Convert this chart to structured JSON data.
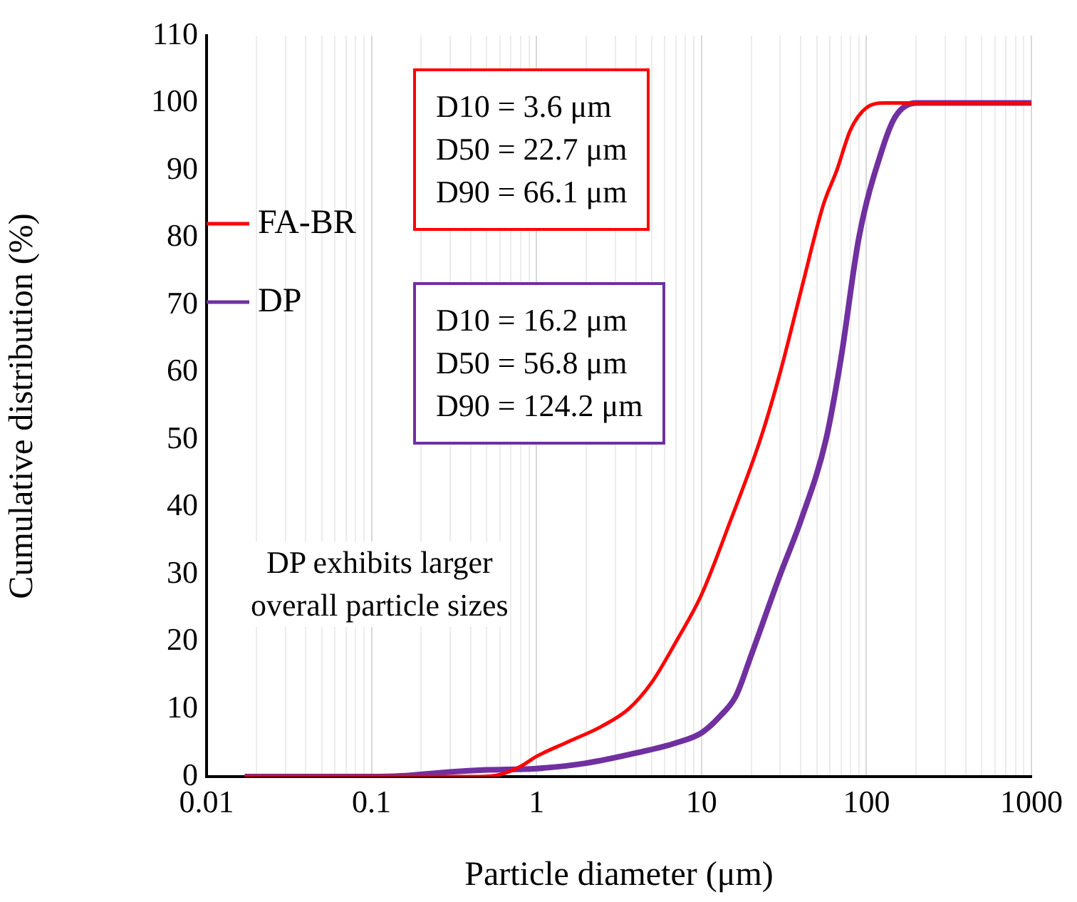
{
  "chart_data": {
    "type": "line",
    "xlabel": "Particle diameter (μm)",
    "ylabel": "Cumulative distribution (%)",
    "log": "x",
    "grid": "x",
    "legend": "left",
    "marker": "none",
    "line_style": "solid",
    "xlim": [
      0.01,
      1000
    ],
    "ylim": [
      0,
      110
    ],
    "xticks": [
      0.01,
      {
        "value": 0.02,
        "label": null
      },
      {
        "value": 0.03,
        "label": null
      },
      {
        "value": 0.04,
        "label": null
      },
      {
        "value": 0.05,
        "label": null
      },
      {
        "value": 0.06,
        "label": null
      },
      {
        "value": 0.07,
        "label": null
      },
      {
        "value": 0.08,
        "label": null
      },
      {
        "value": 0.09,
        "label": null
      },
      0.1,
      {
        "value": 0.2,
        "label": null
      },
      {
        "value": 0.3,
        "label": null
      },
      {
        "value": 0.4,
        "label": null
      },
      {
        "value": 0.5,
        "label": null
      },
      {
        "value": 0.6,
        "label": null
      },
      {
        "value": 0.7,
        "label": null
      },
      {
        "value": 0.8,
        "label": null
      },
      {
        "value": 0.9,
        "label": null
      },
      1,
      {
        "value": 2,
        "label": null
      },
      {
        "value": 3,
        "label": null
      },
      {
        "value": 4,
        "label": null
      },
      {
        "value": 5,
        "label": null
      },
      {
        "value": 6,
        "label": null
      },
      {
        "value": 7,
        "label": null
      },
      {
        "value": 8,
        "label": null
      },
      {
        "value": 9,
        "label": null
      },
      10,
      {
        "value": 20,
        "label": null
      },
      {
        "value": 30,
        "label": null
      },
      {
        "value": 40,
        "label": null
      },
      {
        "value": 50,
        "label": null
      },
      {
        "value": 60,
        "label": null
      },
      {
        "value": 70,
        "label": null
      },
      {
        "value": 80,
        "label": null
      },
      {
        "value": 90,
        "label": null
      },
      100,
      {
        "value": 200,
        "label": null
      },
      {
        "value": 300,
        "label": null
      },
      {
        "value": 400,
        "label": null
      },
      {
        "value": 500,
        "label": null
      },
      {
        "value": 600,
        "label": null
      },
      {
        "value": 700,
        "label": null
      },
      {
        "value": 800,
        "label": null
      },
      {
        "value": 900,
        "label": null
      },
      1000
    ],
    "yticks": [
      0,
      10,
      20,
      30,
      40,
      50,
      60,
      70,
      80,
      90,
      100,
      110
    ],
    "series": [
      {
        "name": "FA-BR",
        "color": "#ff0000",
        "x": [
          0.017,
          0.1,
          0.3,
          0.45,
          0.6,
          0.8,
          1,
          1.5,
          2.5,
          3.6,
          5,
          7,
          10,
          15,
          22.7,
          30,
          40,
          55,
          66.1,
          80,
          100,
          130,
          200,
          1000
        ],
        "values": [
          0,
          0,
          0,
          0,
          0.3,
          1.5,
          3,
          5,
          7.5,
          10,
          14,
          20,
          27,
          38,
          50,
          60,
          72,
          85,
          90,
          96,
          99.3,
          100,
          100,
          100
        ]
      },
      {
        "name": "DP",
        "color": "#7030a0",
        "x": [
          0.017,
          0.1,
          0.15,
          0.3,
          0.5,
          1,
          2,
          4,
          7,
          10,
          13,
          16.2,
          20,
          30,
          40,
          56.8,
          70,
          90,
          124.2,
          150,
          200,
          1000
        ],
        "values": [
          0,
          0,
          0.1,
          0.7,
          1,
          1.2,
          2,
          3.5,
          5,
          6.5,
          9,
          12,
          18,
          30,
          38,
          50,
          62,
          80,
          93,
          98,
          100,
          100
        ]
      }
    ],
    "annotations": [
      "D10 = 3.6 μm\nD50 = 22.7 μm\nD90 = 66.1 μm",
      "D10 = 16.2 μm\nD50 = 56.8 μm\nD90 = 124.2 μm",
      "DP exhibits larger\noverall particle sizes"
    ]
  }
}
